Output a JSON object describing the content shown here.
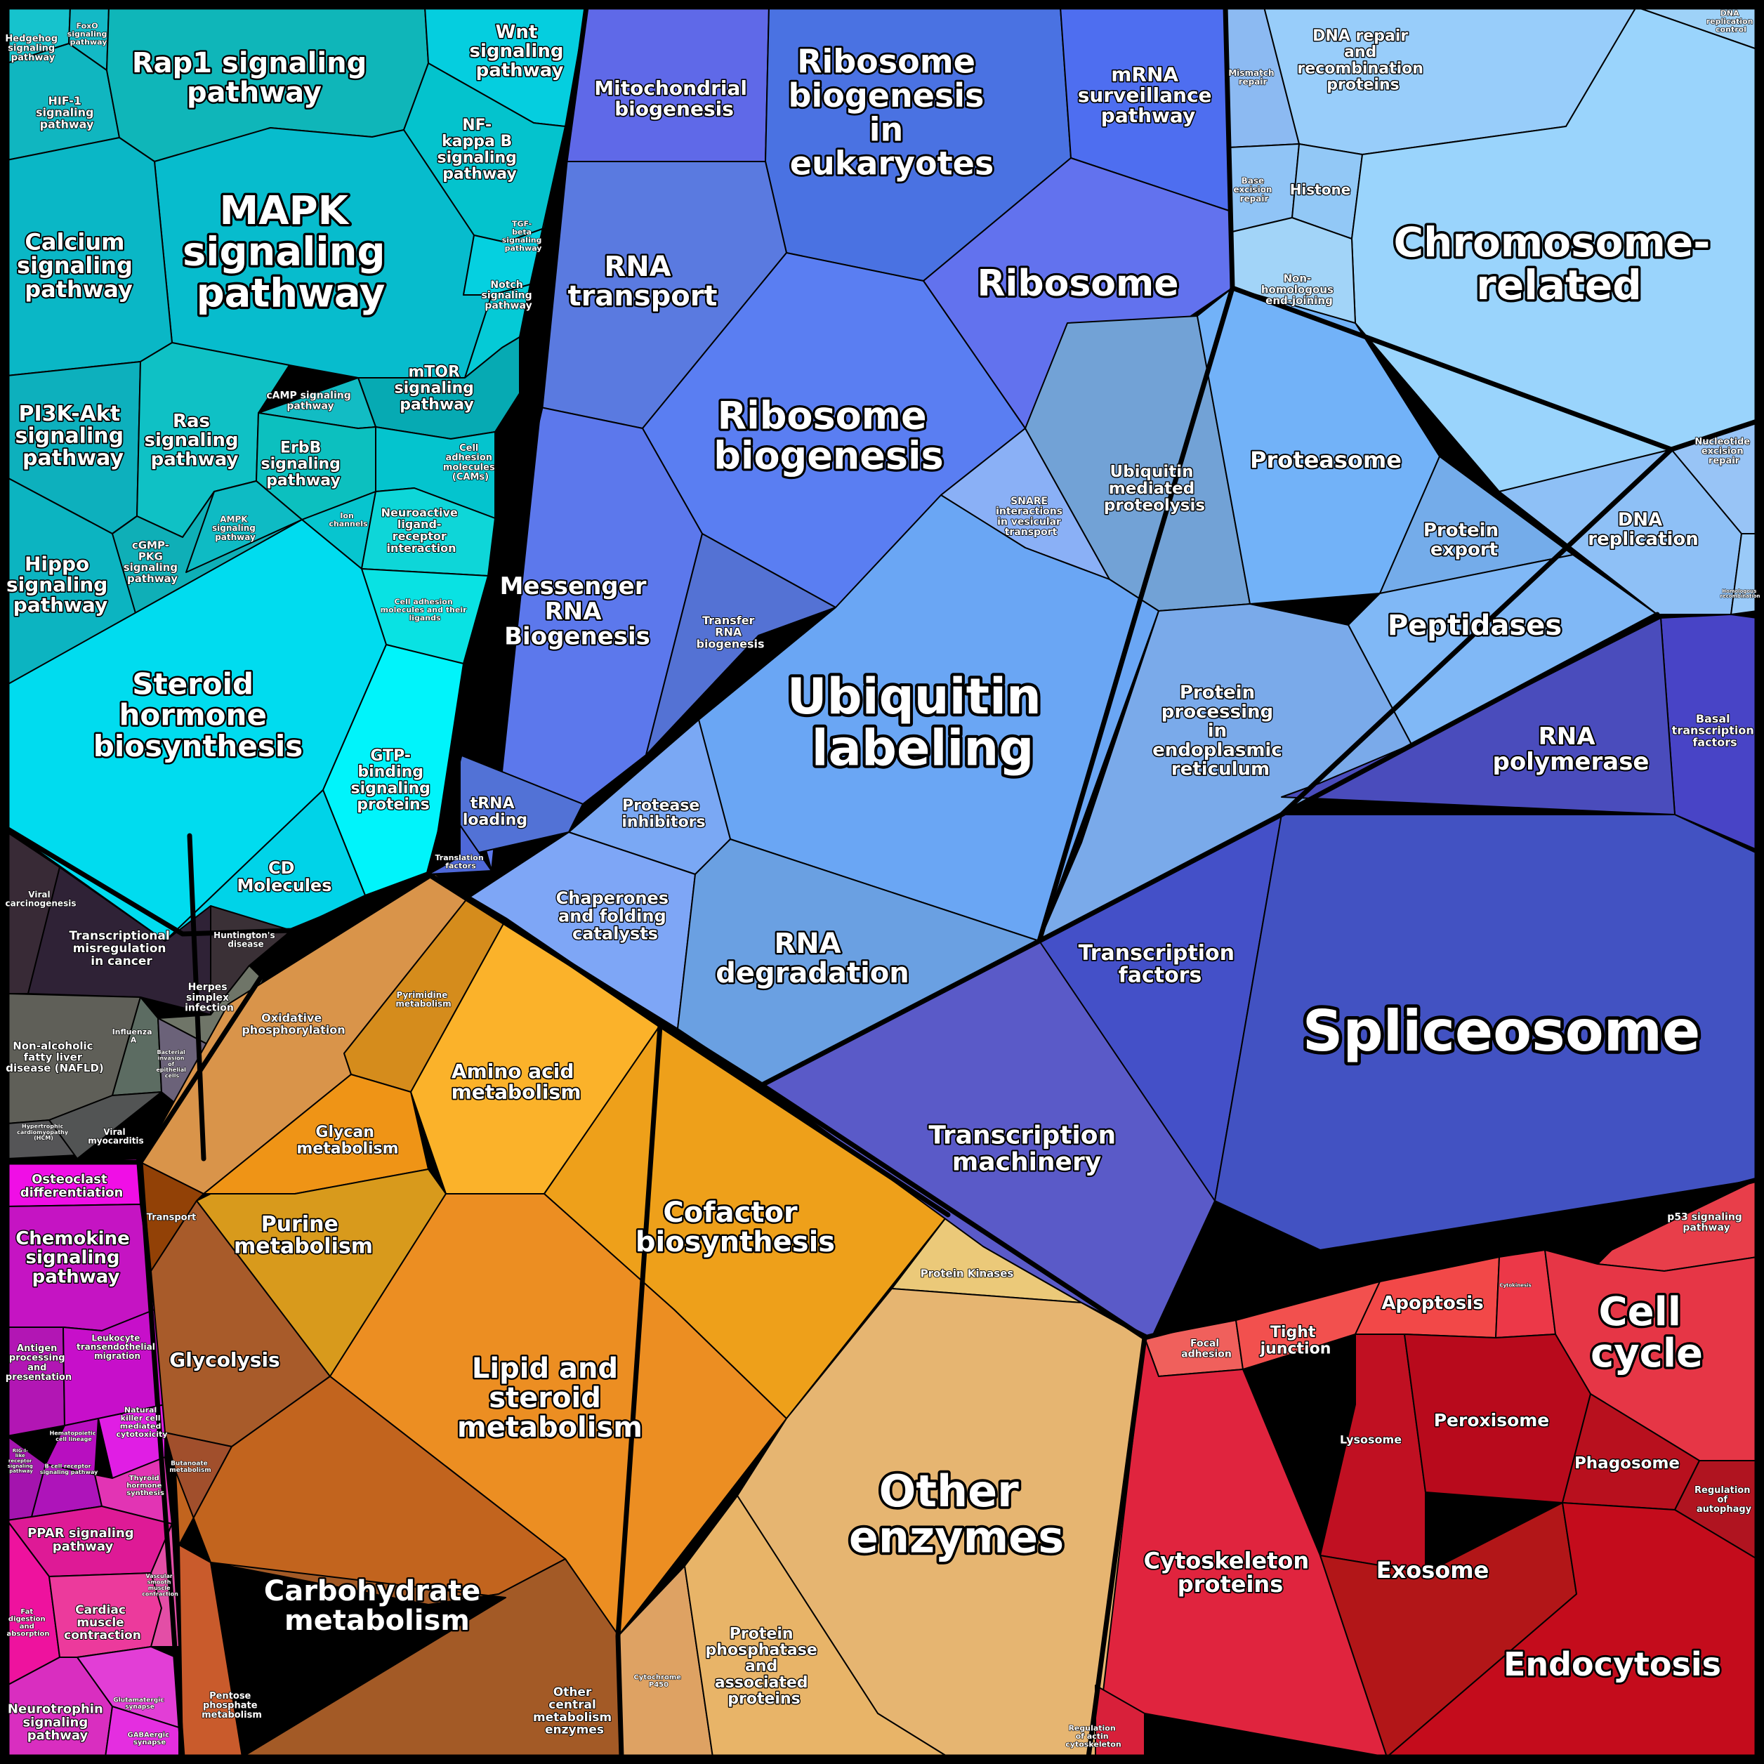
{
  "diagram_data": {
    "type": "voronoi-treemap",
    "groups": [
      {
        "id": "signaling",
        "color": "#00c7d8",
        "cells": [
          {
            "label": "Hedgehog signaling pathway",
            "color": "#16c3cd"
          },
          {
            "label": "FoxO signaling pathway",
            "color": "#13b9c6"
          },
          {
            "label": "HIF-1 signaling pathway",
            "color": "#10b6c0"
          },
          {
            "label": "Rap1 signaling pathway",
            "color": "#0fb6b9"
          },
          {
            "label": "Wnt signaling pathway",
            "color": "#05cedf"
          },
          {
            "label": "NF-kappa B signaling pathway",
            "color": "#04c3cd"
          },
          {
            "label": "MAPK signaling pathway",
            "color": "#07bccd"
          },
          {
            "label": "Calcium signaling pathway",
            "color": "#0ab7c6"
          },
          {
            "label": "TGF-beta signaling pathway",
            "color": "#05d0e0"
          },
          {
            "label": "Notch signaling pathway",
            "color": "#05cad6"
          },
          {
            "label": "mTOR signaling pathway",
            "color": "#06aab3"
          },
          {
            "label": "PI3K-Akt signaling pathway",
            "color": "#0db0bd"
          },
          {
            "label": "Ras signaling pathway",
            "color": "#0fc1c5"
          },
          {
            "label": "cAMP signaling pathway",
            "color": "#12bcc4"
          },
          {
            "label": "ErbB signaling pathway",
            "color": "#0cc0bf"
          },
          {
            "label": "Cell adhesion molecules (CAMs)",
            "color": "#04c4ce"
          },
          {
            "label": "Hippo signaling pathway",
            "color": "#0cb4c1"
          },
          {
            "label": "cGMP-PKG signaling pathway",
            "color": "#0fafb7"
          },
          {
            "label": "AMPK signaling pathway",
            "color": "#0ebbc4"
          },
          {
            "label": "Ion channels",
            "color": "#07c5cf"
          },
          {
            "label": "Neuroactive ligand-receptor interaction",
            "color": "#0ed6d8"
          },
          {
            "label": "Cell adhesion molecules and their ligands",
            "color": "#09e2e3"
          },
          {
            "label": "Steroid hormone biosynthesis",
            "color": "#00dcef"
          },
          {
            "label": "GTP-binding signaling proteins",
            "color": "#00f4fb"
          },
          {
            "label": "CD Molecules",
            "color": "#00d3e8"
          }
        ]
      },
      {
        "id": "disease",
        "color": "#3a2f3a",
        "cells": [
          {
            "label": "Viral carcinogenesis",
            "color": "#382a36"
          },
          {
            "label": "Transcriptional misregulation in cancer",
            "color": "#2f2236"
          },
          {
            "label": "Huntington's disease",
            "color": "#3a3036"
          },
          {
            "label": "Herpes simplex infection",
            "color": "#6f7568"
          },
          {
            "label": "Non-alcoholic fatty liver disease (NAFLD)",
            "color": "#5f5f58"
          },
          {
            "label": "Influenza A",
            "color": "#5c6c62"
          },
          {
            "label": "Bacterial invasion of epithelial cells",
            "color": "#6b6279"
          },
          {
            "label": "Hypertrophic cardiomyopathy (HCM)",
            "color": "#555557"
          },
          {
            "label": "Viral myocarditis",
            "color": "#525454"
          }
        ]
      },
      {
        "id": "immune",
        "color": "#c818c4",
        "cells": [
          {
            "label": "Osteoclast differentiation",
            "color": "#f00ee6"
          },
          {
            "label": "Chemokine signaling pathway",
            "color": "#c514c3"
          },
          {
            "label": "Antigen processing and presentation",
            "color": "#b216b4"
          },
          {
            "label": "Leukocyte transendothelial migration",
            "color": "#c70fca"
          },
          {
            "label": "Hematopoietic cell lineage",
            "color": "#b80fc0"
          },
          {
            "label": "Natural killer cell mediated cytotoxicity",
            "color": "#e01ee4"
          },
          {
            "label": "RIG-I-like receptor signaling pathway",
            "color": "#a414ae"
          },
          {
            "label": "B cell receptor signaling pathway",
            "color": "#ae14ba"
          },
          {
            "label": "Thyroid hormone synthesis",
            "color": "#e234b4"
          },
          {
            "label": "PPAR signaling pathway",
            "color": "#de1a96"
          },
          {
            "label": "Fat digestion and absorption",
            "color": "#ee129e"
          },
          {
            "label": "Cardiac muscle contraction",
            "color": "#ec3a9c"
          },
          {
            "label": "Vascular smooth muscle contraction",
            "color": "#e34ea6"
          },
          {
            "label": "Neurotrophin signaling pathway",
            "color": "#d92ec0"
          },
          {
            "label": "Glutamatergic synapse",
            "color": "#e23ed6"
          },
          {
            "label": "GABAergic synapse",
            "color": "#e42ee0"
          }
        ]
      },
      {
        "id": "metabolism",
        "color": "#e8951c",
        "cells": [
          {
            "label": "Oxidative phosphorylation",
            "color": "#d9944a"
          },
          {
            "label": "Pyrimidine metabolism",
            "color": "#d58c1c"
          },
          {
            "label": "Amino acid metabolism",
            "color": "#fbb22a"
          },
          {
            "label": "Glycan metabolism",
            "color": "#ef9416"
          },
          {
            "label": "Transport",
            "color": "#924106"
          },
          {
            "label": "Purine metabolism",
            "color": "#d89a1c"
          },
          {
            "label": "Cofactor biosynthesis",
            "color": "#eea01a"
          },
          {
            "label": "Protein kinases",
            "color": "#ebc979"
          },
          {
            "label": "Glycolysis",
            "color": "#a85b2a"
          },
          {
            "label": "Lipid and steroid metabolism",
            "color": "#ec8e22"
          },
          {
            "label": "Butanoate metabolism",
            "color": "#a14f2c"
          },
          {
            "label": "Carbohydrate metabolism",
            "color": "#c2641e"
          },
          {
            "label": "Other enzymes",
            "color": "#e6b571"
          },
          {
            "label": "Pentose phosphate metabolism",
            "color": "#c95b2c"
          },
          {
            "label": "Other central metabolism enzymes",
            "color": "#a35a26"
          },
          {
            "label": "Cytochrome P450",
            "color": "#dea263"
          },
          {
            "label": "Protein phosphatase and associated proteins",
            "color": "#e8b468"
          }
        ]
      },
      {
        "id": "genetic",
        "color": "#5a7ae8",
        "cells": [
          {
            "label": "Mitochondrial biogenesis",
            "color": "#5f69e8"
          },
          {
            "label": "Ribosome biogenesis in eukaryotes",
            "color": "#4a72e2"
          },
          {
            "label": "mRNA surveillance pathway",
            "color": "#4e6ef0"
          },
          {
            "label": "RNA transport",
            "color": "#5a7ae0"
          },
          {
            "label": "Ribosome",
            "color": "#6272ee"
          },
          {
            "label": "Ribosome biogenesis",
            "color": "#5a7ef2"
          },
          {
            "label": "Messenger RNA Biogenesis",
            "color": "#5c78ec"
          },
          {
            "label": "Transfer RNA biogenesis",
            "color": "#5472d4"
          },
          {
            "label": "SNARE interactions in vesicular transport",
            "color": "#8ab0f6"
          },
          {
            "label": "Ubiquitin mediated proteolysis",
            "color": "#72a2d6"
          },
          {
            "label": "Proteasome",
            "color": "#72b2f8"
          },
          {
            "label": "Protein export",
            "color": "#74acea"
          },
          {
            "label": "Ubiquitin labeling",
            "color": "#6aa6f4"
          },
          {
            "label": "Peptidases",
            "color": "#80b8f6"
          },
          {
            "label": "Protein processing in endoplasmic reticulum",
            "color": "#7aaaea"
          },
          {
            "label": "tRNA loading",
            "color": "#5272d6"
          },
          {
            "label": "Translation factors",
            "color": "#4e68d8"
          },
          {
            "label": "Protease inhibitors",
            "color": "#7aa8f4"
          },
          {
            "label": "Chaperones and folding catalysts",
            "color": "#7ea6f6"
          },
          {
            "label": "RNA degradation",
            "color": "#6aa0e2"
          }
        ]
      },
      {
        "id": "transcription",
        "color": "#4452c4",
        "cells": [
          {
            "label": "Basal transcription factors",
            "color": "#4844c6"
          },
          {
            "label": "RNA polymerase",
            "color": "#4a4cbc"
          },
          {
            "label": "Transcription factors",
            "color": "#4450c8"
          },
          {
            "label": "Spliceosome",
            "color": "#4252c2"
          },
          {
            "label": "Transcription machinery",
            "color": "#5a5ac8"
          }
        ]
      },
      {
        "id": "replication",
        "color": "#96ccf8",
        "cells": [
          {
            "label": "DNA replication control",
            "color": "#9ed2f8"
          },
          {
            "label": "Mismatch repair",
            "color": "#8cbaf2"
          },
          {
            "label": "DNA repair and recombination proteins",
            "color": "#98cdfa"
          },
          {
            "label": "Base excision repair",
            "color": "#90c4f6"
          },
          {
            "label": "Histone",
            "color": "#92c8f6"
          },
          {
            "label": "Chromosome-related",
            "color": "#9ad4fc"
          },
          {
            "label": "Non-homologous end-joining",
            "color": "#a2d4f8"
          },
          {
            "label": "Nucleotide excision repair",
            "color": "#98c4f6"
          },
          {
            "label": "DNA replication",
            "color": "#8ec0f6"
          },
          {
            "label": "Homologous recombination",
            "color": "#9acaf8"
          }
        ]
      },
      {
        "id": "cellular",
        "color": "#d42434",
        "cells": [
          {
            "label": "p53 signaling pathway",
            "color": "#e83e4a"
          },
          {
            "label": "Focal adhesion",
            "color": "#f0605c"
          },
          {
            "label": "Tight junction",
            "color": "#f2504e"
          },
          {
            "label": "Apoptosis",
            "color": "#f24848"
          },
          {
            "label": "Cytokinesis",
            "color": "#ec3848"
          },
          {
            "label": "Cell cycle",
            "color": "#e63646"
          },
          {
            "label": "Lysosome",
            "color": "#c01022"
          },
          {
            "label": "Peroxisome",
            "color": "#b80a1c"
          },
          {
            "label": "Phagosome",
            "color": "#b8101e"
          },
          {
            "label": "Regulation of autophagy",
            "color": "#b01420"
          },
          {
            "label": "Cytoskeleton proteins",
            "color": "#e0243e"
          },
          {
            "label": "Exosome",
            "color": "#b21618"
          },
          {
            "label": "Endocytosis",
            "color": "#c40c1c"
          },
          {
            "label": "Regulation of actin cytoskeleton",
            "color": "#d8203a"
          }
        ]
      }
    ]
  }
}
